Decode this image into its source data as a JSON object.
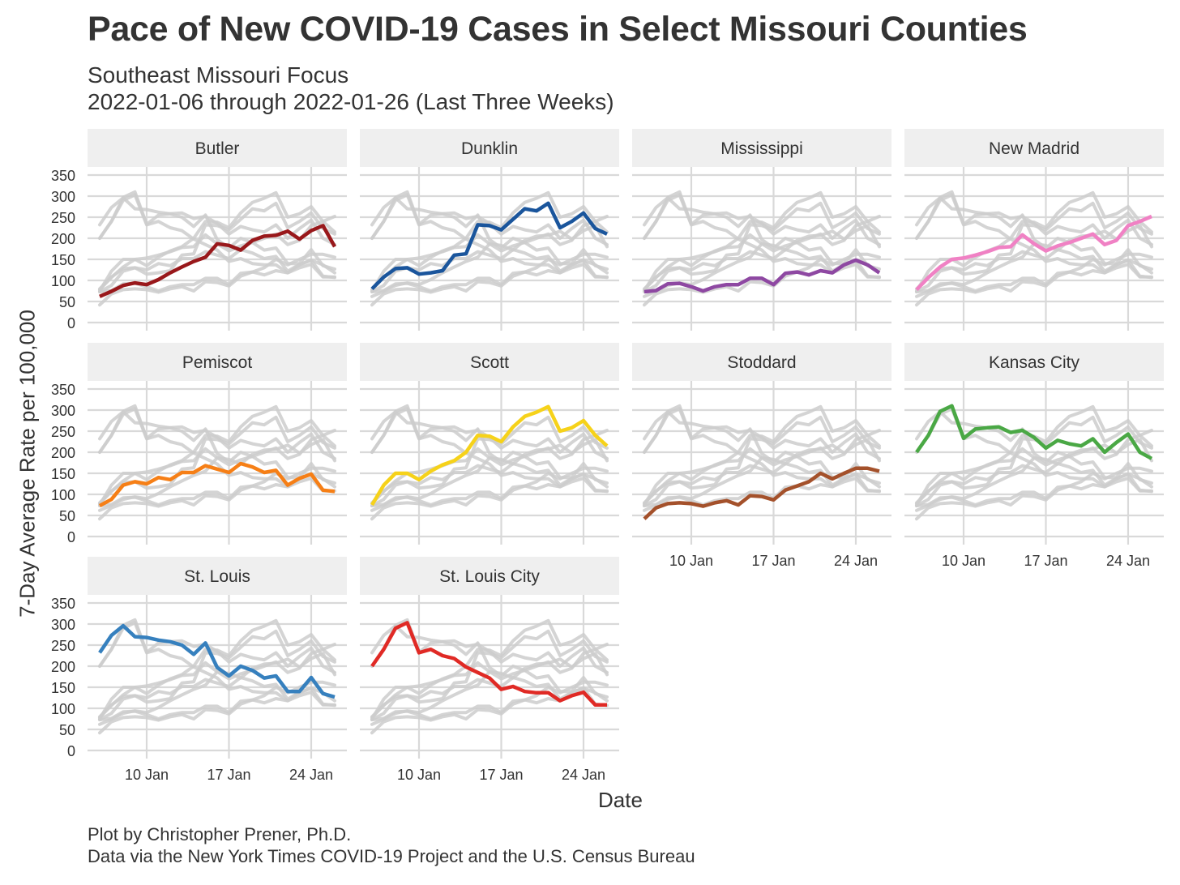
{
  "title": "Pace of New COVID-19 Cases in Select Missouri Counties",
  "subtitle_line1": "Southeast Missouri Focus",
  "subtitle_line2": "2022-01-06 through 2022-01-26 (Last Three Weeks)",
  "caption_line1": "Plot by Christopher Prener, Ph.D.",
  "caption_line2": "Data via the New York Times COVID-19 Project and the U.S. Census Bureau",
  "x_axis_title": "Date",
  "y_axis_title": "7-Day Average Rate per 100,000",
  "chart_data": {
    "type": "line",
    "layout": "small-multiples",
    "title": "Pace of New COVID-19 Cases in Select Missouri Counties",
    "xlabel": "Date",
    "ylabel": "7-Day Average Rate per 100,000",
    "x": [
      "2022-01-06",
      "2022-01-07",
      "2022-01-08",
      "2022-01-09",
      "2022-01-10",
      "2022-01-11",
      "2022-01-12",
      "2022-01-13",
      "2022-01-14",
      "2022-01-15",
      "2022-01-16",
      "2022-01-17",
      "2022-01-18",
      "2022-01-19",
      "2022-01-20",
      "2022-01-21",
      "2022-01-22",
      "2022-01-23",
      "2022-01-24",
      "2022-01-25",
      "2022-01-26"
    ],
    "x_ticks": [
      {
        "date": "2022-01-10",
        "label": "10 Jan"
      },
      {
        "date": "2022-01-17",
        "label": "17 Jan"
      },
      {
        "date": "2022-01-24",
        "label": "24 Jan"
      }
    ],
    "y_ticks": [
      0,
      50,
      100,
      150,
      200,
      250,
      300,
      350
    ],
    "ylim": [
      0,
      350
    ],
    "grid": true,
    "background_series_color": "#cccccc",
    "series": [
      {
        "name": "Butler",
        "color": "#99181b",
        "values": [
          62,
          74,
          88,
          94,
          90,
          102,
          118,
          132,
          145,
          155,
          187,
          183,
          172,
          195,
          205,
          207,
          217,
          198,
          218,
          230,
          180
        ]
      },
      {
        "name": "Dunklin",
        "color": "#1a559c",
        "values": [
          80,
          108,
          128,
          130,
          115,
          118,
          123,
          160,
          163,
          232,
          230,
          220,
          245,
          270,
          265,
          283,
          225,
          240,
          260,
          223,
          210
        ]
      },
      {
        "name": "Mississippi",
        "color": "#8e48a2",
        "values": [
          73,
          76,
          92,
          93,
          85,
          75,
          85,
          90,
          90,
          105,
          105,
          90,
          117,
          120,
          113,
          123,
          118,
          137,
          148,
          137,
          118
        ]
      },
      {
        "name": "New Madrid",
        "color": "#f081c4",
        "values": [
          78,
          107,
          132,
          150,
          153,
          160,
          168,
          178,
          180,
          208,
          187,
          170,
          182,
          190,
          200,
          210,
          185,
          195,
          230,
          240,
          252
        ]
      },
      {
        "name": "Pemiscot",
        "color": "#f67f16",
        "values": [
          73,
          88,
          122,
          130,
          125,
          140,
          135,
          152,
          152,
          168,
          160,
          152,
          173,
          165,
          152,
          157,
          122,
          138,
          148,
          110,
          107
        ]
      },
      {
        "name": "Scott",
        "color": "#f6d21a",
        "values": [
          75,
          122,
          150,
          150,
          135,
          155,
          170,
          180,
          200,
          240,
          238,
          225,
          260,
          285,
          295,
          308,
          250,
          258,
          275,
          240,
          215
        ]
      },
      {
        "name": "Stoddard",
        "color": "#a4512b",
        "values": [
          42,
          68,
          78,
          80,
          78,
          72,
          80,
          85,
          75,
          97,
          95,
          87,
          110,
          120,
          130,
          150,
          137,
          150,
          162,
          162,
          155
        ]
      },
      {
        "name": "Kansas City",
        "color": "#4aa845",
        "values": [
          200,
          240,
          297,
          310,
          233,
          255,
          258,
          260,
          247,
          252,
          235,
          210,
          228,
          220,
          215,
          232,
          200,
          223,
          243,
          200,
          185
        ]
      },
      {
        "name": "St. Louis",
        "color": "#3680be",
        "values": [
          232,
          273,
          296,
          270,
          268,
          262,
          258,
          250,
          228,
          255,
          197,
          177,
          200,
          190,
          172,
          177,
          140,
          140,
          173,
          135,
          127
        ]
      },
      {
        "name": "St. Louis City",
        "color": "#e02a25",
        "values": [
          200,
          240,
          290,
          303,
          232,
          240,
          225,
          218,
          198,
          185,
          172,
          145,
          152,
          140,
          137,
          137,
          118,
          130,
          138,
          108,
          108
        ]
      }
    ]
  }
}
